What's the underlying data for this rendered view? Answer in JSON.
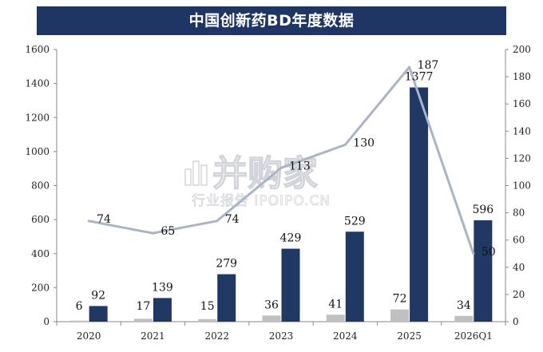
{
  "chart_data": {
    "type": "bar",
    "title": "中国创新药BD年度数据",
    "categories": [
      "2020",
      "2021",
      "2022",
      "2023",
      "2024",
      "2025",
      "2026Q1"
    ],
    "series": [
      {
        "name": "",
        "kind": "bar",
        "axis": "left",
        "color": "#c0c0c0",
        "values": [
          6,
          17,
          15,
          36,
          41,
          72,
          34
        ]
      },
      {
        "name": "",
        "kind": "bar",
        "axis": "left",
        "color": "#1f3864",
        "values": [
          92,
          139,
          279,
          429,
          529,
          1377,
          596
        ]
      },
      {
        "name": "",
        "kind": "line",
        "axis": "right",
        "color": "#aab4c6",
        "values": [
          74,
          65,
          74,
          113,
          130,
          187,
          50
        ]
      }
    ],
    "left_axis": {
      "ylim": [
        0,
        1600
      ],
      "ticks": [
        0,
        200,
        400,
        600,
        800,
        1000,
        1200,
        1400,
        1600
      ]
    },
    "right_axis": {
      "ylim": [
        0,
        200
      ],
      "ticks": [
        0,
        20,
        40,
        60,
        80,
        100,
        120,
        140,
        160,
        180,
        200
      ]
    },
    "xlabel": "",
    "ylabel": "",
    "grid": false,
    "legend": "none"
  },
  "watermark": {
    "main": "并购家",
    "sub": "行业报告 IPOIPO.CN",
    "icon": "bar-chart-icon"
  }
}
